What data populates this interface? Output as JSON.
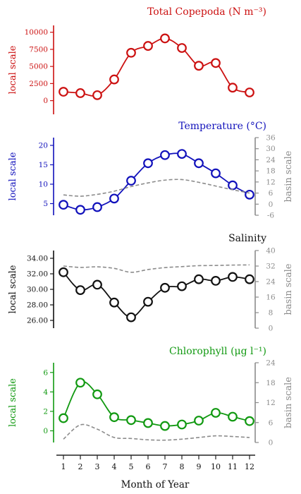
{
  "chart_data": [
    {
      "type": "line",
      "title": "Total Copepoda (N m⁻³)",
      "color": "#cc1111",
      "ylabel_left": "local scale",
      "ylabel_right": "",
      "x": [
        1,
        2,
        3,
        4,
        5,
        6,
        7,
        8,
        9,
        10,
        11,
        12
      ],
      "left_axis": {
        "ylim": [
          -2000,
          11000
        ],
        "ticks": [
          0,
          2500,
          5000,
          7500,
          10000
        ],
        "tick_labels": [
          "0",
          "2500",
          "5000",
          "7500",
          "10000"
        ]
      },
      "series": [
        {
          "name": "",
          "style": "solid-circles",
          "values": [
            1300,
            1100,
            800,
            3100,
            7000,
            8000,
            9100,
            7700,
            5100,
            5500,
            1900,
            1200
          ]
        }
      ]
    },
    {
      "type": "line",
      "title": "Temperature (°C)",
      "color": "#1111bb",
      "ylabel_left": "local scale",
      "ylabel_right": "basin scale",
      "x": [
        1,
        2,
        3,
        4,
        5,
        6,
        7,
        8,
        9,
        10,
        11,
        12
      ],
      "left_axis": {
        "ylim": [
          2,
          22
        ],
        "ticks": [
          5,
          10,
          15,
          20
        ],
        "tick_labels": [
          "5",
          "10",
          "15",
          "20"
        ]
      },
      "right_axis": {
        "ylim": [
          -6,
          36
        ],
        "ticks": [
          -6,
          0,
          6,
          12,
          18,
          24,
          30,
          36
        ],
        "tick_labels": [
          "-6",
          "0",
          "6",
          "12",
          "18",
          "24",
          "30",
          "36"
        ]
      },
      "series": [
        {
          "name": "",
          "axis": "left",
          "style": "solid-circles",
          "values": [
            4.7,
            3.4,
            4.1,
            6.3,
            10.9,
            15.4,
            17.5,
            17.8,
            15.4,
            12.8,
            9.7,
            7.3
          ]
        },
        {
          "name": "",
          "axis": "right",
          "style": "dashed-gray",
          "values": [
            5,
            4.3,
            5.3,
            7,
            9.5,
            11.5,
            13,
            13.3,
            11.8,
            9.8,
            7.8,
            6
          ]
        }
      ]
    },
    {
      "type": "line",
      "title": "Salinity",
      "color": "#111111",
      "ylabel_left": "local scale",
      "ylabel_right": "basin scale",
      "x": [
        1,
        2,
        3,
        4,
        5,
        6,
        7,
        8,
        9,
        10,
        11,
        12
      ],
      "left_axis": {
        "ylim": [
          25,
          35
        ],
        "ticks": [
          26,
          28,
          30,
          32,
          34
        ],
        "tick_labels": [
          "26.00",
          "28.00",
          "30.00",
          "32.00",
          "34.00"
        ]
      },
      "right_axis": {
        "ylim": [
          0,
          40
        ],
        "ticks": [
          0,
          8,
          16,
          24,
          32,
          40
        ],
        "tick_labels": [
          "0",
          "8",
          "16",
          "24",
          "32",
          "40"
        ]
      },
      "series": [
        {
          "name": "",
          "axis": "left",
          "style": "solid-circles",
          "values": [
            32.2,
            29.9,
            30.6,
            28.3,
            26.4,
            28.4,
            30.2,
            30.4,
            31.3,
            31.1,
            31.6,
            31.3
          ]
        },
        {
          "name": "",
          "axis": "right",
          "style": "dashed-gray",
          "values": [
            32,
            31.3,
            31.6,
            30.8,
            28.8,
            30.2,
            31.2,
            31.7,
            32.2,
            32.3,
            32.5,
            32.6
          ]
        }
      ]
    },
    {
      "type": "line",
      "title": "Chlorophyll (μg l⁻¹)",
      "color": "#119911",
      "ylabel_left": "local scale",
      "ylabel_right": "basin scale",
      "x": [
        1,
        2,
        3,
        4,
        5,
        6,
        7,
        8,
        9,
        10,
        11,
        12
      ],
      "xlabel": "Month of Year",
      "x_tick_labels": [
        "1",
        "2",
        "3",
        "4",
        "5",
        "6",
        "7",
        "8",
        "9",
        "10",
        "11",
        "12"
      ],
      "left_axis": {
        "ylim": [
          -1.2,
          7
        ],
        "ticks": [
          0,
          2,
          4,
          6
        ],
        "tick_labels": [
          "0",
          "2",
          "4",
          "6"
        ]
      },
      "right_axis": {
        "ylim": [
          0,
          24
        ],
        "ticks": [
          0,
          6,
          12,
          18,
          24
        ],
        "tick_labels": [
          "0",
          "6",
          "12",
          "18",
          "24"
        ]
      },
      "series": [
        {
          "name": "",
          "axis": "left",
          "style": "solid-circles",
          "values": [
            1.3,
            4.95,
            3.75,
            1.4,
            1.1,
            0.8,
            0.5,
            0.65,
            1.05,
            1.85,
            1.45,
            1.0
          ]
        },
        {
          "name": "",
          "axis": "right",
          "style": "dashed-gray",
          "values": [
            1,
            5.3,
            4,
            1.5,
            1.2,
            0.8,
            0.7,
            1,
            1.5,
            2,
            1.8,
            1.5
          ]
        }
      ]
    }
  ]
}
